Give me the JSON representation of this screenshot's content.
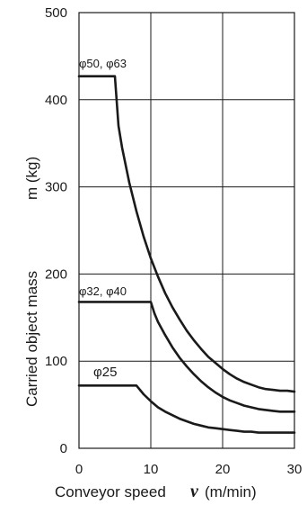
{
  "chart_data": {
    "type": "line",
    "xlabel": "Conveyor speed",
    "xlabel_var": "v",
    "xlabel_unit": "(m/min)",
    "ylabel": "Carried object mass",
    "ylabel_unit": "m (kg)",
    "xlim": [
      0,
      30
    ],
    "ylim": [
      0,
      500
    ],
    "xticks": [
      "0",
      "10",
      "20",
      "30"
    ],
    "yticks": [
      "0",
      "100",
      "200",
      "300",
      "400",
      "500"
    ],
    "grid": true,
    "line_color": "#1a1a1a",
    "series": [
      {
        "name": "φ50, φ63",
        "x": [
          0,
          5,
          5.5,
          6,
          7,
          8,
          9,
          10,
          11,
          12,
          13,
          14,
          15,
          16,
          17,
          18,
          19,
          20,
          21,
          22,
          23,
          24,
          25,
          26,
          27,
          28,
          29,
          30
        ],
        "y": [
          427,
          427,
          370,
          345,
          305,
          272,
          243,
          218,
          197,
          178,
          162,
          148,
          135,
          124,
          114,
          105,
          98,
          91,
          85,
          80,
          76,
          73,
          70,
          68,
          67,
          66,
          66,
          65
        ]
      },
      {
        "name": "φ32, φ40",
        "x": [
          0,
          10,
          10.5,
          11,
          12,
          13,
          14,
          15,
          16,
          17,
          18,
          19,
          20,
          21,
          22,
          23,
          24,
          25,
          26,
          27,
          28,
          29,
          30
        ],
        "y": [
          168,
          168,
          155,
          145,
          130,
          116,
          104,
          94,
          85,
          77,
          70,
          64,
          59,
          55,
          52,
          49,
          47,
          45,
          44,
          43,
          42,
          42,
          42
        ]
      },
      {
        "name": "φ25",
        "x": [
          0,
          8,
          9,
          10,
          11,
          12,
          13,
          14,
          15,
          16,
          17,
          18,
          19,
          20,
          21,
          22,
          23,
          24,
          25,
          26,
          27,
          28,
          29,
          30
        ],
        "y": [
          72,
          72,
          62,
          54,
          47,
          42,
          38,
          34,
          31,
          28,
          26,
          24,
          23,
          22,
          21,
          20,
          19,
          19,
          18,
          18,
          18,
          18,
          18,
          18
        ]
      }
    ]
  }
}
